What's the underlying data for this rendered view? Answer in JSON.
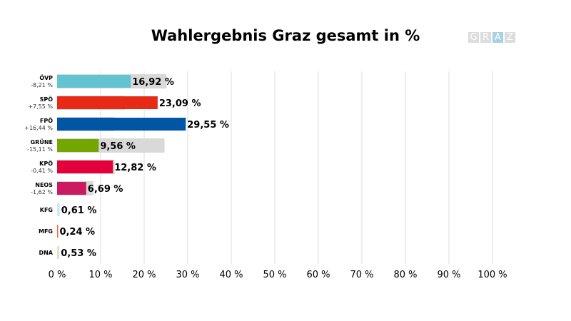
{
  "chart_data": {
    "type": "bar",
    "orientation": "horizontal",
    "title": "Wahlergebnis Graz gesamt in %",
    "categories": [
      "ÖVP",
      "SPÖ",
      "FPÖ",
      "GRÜNE",
      "KPÖ",
      "NEOS",
      "KFG",
      "MFG",
      "DNA"
    ],
    "changes": [
      "-8,21 %",
      "+7,55 %",
      "+16,44 %",
      "-15,11 %",
      "-0,41 %",
      "-1,62 %",
      "",
      "",
      ""
    ],
    "values": [
      16.92,
      23.09,
      29.55,
      9.56,
      12.82,
      6.69,
      0.61,
      0.24,
      0.53
    ],
    "value_labels": [
      "16,92 %",
      "23,09 %",
      "29,55 %",
      "9,56 %",
      "12,82 %",
      "6,69 %",
      "0,61 %",
      "0,24 %",
      "0,53 %"
    ],
    "previous_values": [
      25.13,
      15.54,
      13.11,
      24.67,
      13.23,
      8.31,
      null,
      null,
      null
    ],
    "colors": [
      "#63c3d1",
      "#e62a16",
      "#0056a4",
      "#73a600",
      "#e4003a",
      "#cc1a62",
      "#cfe8f7",
      "#f26a3d",
      "#e8e0c8"
    ],
    "previous_color": "#d9d9d9",
    "xlim": [
      0,
      100
    ],
    "x_ticks": [
      "0 %",
      "10 %",
      "20 %",
      "30 %",
      "40 %",
      "50 %",
      "60 %",
      "70 %",
      "80 %",
      "90 %",
      "100 %"
    ],
    "grid": true
  },
  "logo": {
    "letters": [
      "G",
      "R",
      "A",
      "Z"
    ]
  }
}
